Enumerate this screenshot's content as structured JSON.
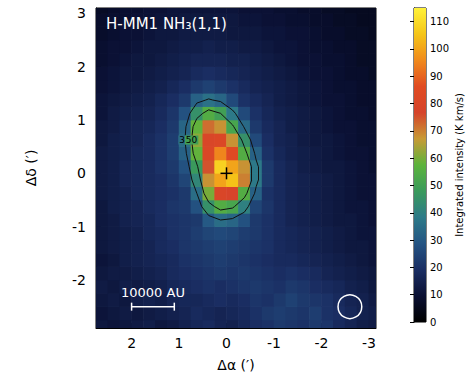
{
  "chart_data": {
    "type": "heatmap",
    "title": "H-MM1 NH₃(1,1)",
    "x_label": "Δα (′)",
    "y_label": "Δδ (′)",
    "xlim": [
      2.75,
      -3.15
    ],
    "ylim": [
      -2.9,
      3.1
    ],
    "xticks": [
      2,
      1,
      0,
      -1,
      -2,
      -3
    ],
    "yticks": [
      -2,
      -1,
      0,
      1,
      2,
      3
    ],
    "x": [
      2.625,
      2.375,
      2.125,
      1.875,
      1.625,
      1.375,
      1.125,
      0.875,
      0.625,
      0.375,
      0.125,
      -0.125,
      -0.375,
      -0.625,
      -0.875,
      -1.125,
      -1.375,
      -1.625,
      -1.875,
      -2.125,
      -2.375,
      -2.625,
      -2.875,
      -3.125
    ],
    "y": [
      -2.875,
      -2.625,
      -2.375,
      -2.125,
      -1.875,
      -1.625,
      -1.375,
      -1.125,
      -0.875,
      -0.625,
      -0.375,
      -0.125,
      0.125,
      0.375,
      0.625,
      0.875,
      1.125,
      1.375,
      1.625,
      1.875,
      2.125,
      2.375,
      2.625,
      2.875,
      3.125
    ],
    "cells": [
      [
        12,
        11,
        12,
        13,
        14,
        12,
        13,
        15,
        17,
        18,
        16,
        15,
        17,
        19,
        20,
        22,
        21,
        20,
        22,
        21,
        18,
        16,
        14,
        13
      ],
      [
        11,
        12,
        13,
        12,
        13,
        14,
        15,
        16,
        18,
        17,
        16,
        17,
        18,
        20,
        22,
        23,
        22,
        21,
        23,
        20,
        19,
        17,
        15,
        14
      ],
      [
        12,
        13,
        12,
        14,
        15,
        14,
        16,
        17,
        17,
        18,
        19,
        18,
        19,
        21,
        20,
        22,
        24,
        22,
        21,
        20,
        18,
        16,
        15,
        13
      ],
      [
        13,
        12,
        14,
        13,
        14,
        15,
        17,
        18,
        19,
        20,
        19,
        20,
        21,
        22,
        21,
        20,
        22,
        21,
        19,
        18,
        17,
        15,
        14,
        12
      ],
      [
        12,
        13,
        13,
        14,
        15,
        16,
        18,
        19,
        20,
        21,
        22,
        21,
        22,
        21,
        20,
        19,
        20,
        19,
        18,
        16,
        15,
        14,
        13,
        12
      ],
      [
        11,
        12,
        14,
        15,
        16,
        17,
        18,
        20,
        21,
        22,
        23,
        22,
        21,
        20,
        19,
        18,
        18,
        17,
        16,
        15,
        14,
        13,
        12,
        11
      ],
      [
        12,
        13,
        14,
        15,
        16,
        18,
        19,
        21,
        22,
        23,
        24,
        23,
        22,
        21,
        20,
        18,
        17,
        16,
        15,
        14,
        13,
        12,
        12,
        11
      ],
      [
        12,
        13,
        14,
        15,
        17,
        18,
        20,
        21,
        23,
        25,
        26,
        25,
        23,
        22,
        20,
        18,
        17,
        16,
        15,
        14,
        13,
        12,
        11,
        11
      ],
      [
        12,
        13,
        15,
        16,
        17,
        19,
        20,
        21,
        22,
        30,
        35,
        33,
        28,
        22,
        20,
        18,
        16,
        15,
        14,
        13,
        12,
        12,
        11,
        10
      ],
      [
        12,
        14,
        15,
        16,
        18,
        19,
        21,
        22,
        28,
        45,
        55,
        52,
        40,
        25,
        21,
        18,
        16,
        15,
        14,
        13,
        12,
        11,
        11,
        10
      ],
      [
        13,
        14,
        15,
        17,
        18,
        19,
        20,
        22,
        35,
        60,
        80,
        78,
        55,
        32,
        20,
        18,
        16,
        15,
        14,
        13,
        12,
        11,
        10,
        10
      ],
      [
        13,
        14,
        16,
        17,
        18,
        19,
        21,
        25,
        42,
        68,
        100,
        105,
        70,
        38,
        22,
        18,
        16,
        15,
        14,
        13,
        12,
        11,
        10,
        10
      ],
      [
        13,
        14,
        16,
        17,
        18,
        20,
        22,
        28,
        48,
        75,
        108,
        100,
        68,
        38,
        22,
        18,
        16,
        14,
        13,
        12,
        12,
        11,
        10,
        9
      ],
      [
        13,
        14,
        15,
        17,
        18,
        20,
        23,
        32,
        58,
        82,
        95,
        85,
        55,
        32,
        20,
        17,
        15,
        14,
        13,
        12,
        11,
        10,
        10,
        9
      ],
      [
        12,
        14,
        15,
        16,
        18,
        20,
        23,
        35,
        62,
        80,
        82,
        68,
        45,
        26,
        19,
        16,
        15,
        13,
        12,
        12,
        11,
        10,
        9,
        9
      ],
      [
        12,
        13,
        15,
        16,
        17,
        19,
        22,
        33,
        58,
        72,
        68,
        52,
        34,
        22,
        18,
        16,
        14,
        13,
        12,
        11,
        10,
        10,
        9,
        9
      ],
      [
        11,
        13,
        14,
        15,
        16,
        18,
        21,
        28,
        45,
        55,
        50,
        38,
        26,
        20,
        17,
        15,
        14,
        13,
        12,
        11,
        10,
        9,
        9,
        8
      ],
      [
        11,
        12,
        13,
        14,
        15,
        17,
        19,
        22,
        32,
        36,
        33,
        26,
        20,
        18,
        16,
        14,
        13,
        12,
        11,
        10,
        10,
        9,
        8,
        8
      ],
      [
        10,
        11,
        12,
        13,
        14,
        15,
        17,
        19,
        22,
        24,
        22,
        20,
        18,
        16,
        15,
        14,
        13,
        12,
        11,
        10,
        9,
        9,
        8,
        8
      ],
      [
        10,
        11,
        12,
        12,
        13,
        14,
        15,
        16,
        18,
        19,
        18,
        17,
        16,
        15,
        14,
        13,
        12,
        11,
        10,
        10,
        9,
        8,
        8,
        7
      ],
      [
        9,
        10,
        11,
        12,
        12,
        13,
        14,
        15,
        16,
        16,
        16,
        15,
        15,
        14,
        13,
        12,
        11,
        10,
        10,
        9,
        9,
        8,
        7,
        7
      ],
      [
        9,
        10,
        10,
        11,
        12,
        12,
        13,
        14,
        14,
        15,
        14,
        14,
        13,
        13,
        12,
        11,
        11,
        10,
        9,
        9,
        8,
        8,
        7,
        7
      ],
      [
        8,
        9,
        10,
        10,
        11,
        12,
        12,
        13,
        13,
        13,
        13,
        12,
        12,
        12,
        11,
        11,
        10,
        10,
        9,
        8,
        8,
        7,
        7,
        6
      ],
      [
        8,
        9,
        9,
        10,
        10,
        11,
        11,
        12,
        12,
        12,
        12,
        12,
        11,
        11,
        10,
        10,
        9,
        9,
        8,
        8,
        7,
        7,
        6,
        6
      ],
      [
        7,
        8,
        9,
        9,
        10,
        10,
        11,
        11,
        11,
        11,
        11,
        11,
        10,
        10,
        10,
        9,
        9,
        8,
        8,
        7,
        7,
        6,
        6,
        6
      ]
    ],
    "contours": {
      "levels": [
        35,
        50
      ]
    },
    "colorbar": {
      "label": "Integrated intensity (K km/s)",
      "range": [
        0,
        115
      ],
      "ticks": [
        0,
        10,
        20,
        30,
        40,
        50,
        60,
        70,
        80,
        90,
        100,
        110
      ],
      "colors": [
        "#000000",
        "#0a1033",
        "#1a2e63",
        "#245483",
        "#2d7a88",
        "#3a9a5c",
        "#5cb33c",
        "#c79a35",
        "#d5432b",
        "#e04b22",
        "#f08a1c",
        "#f5c518",
        "#fff23a"
      ]
    },
    "scale_bar": {
      "label": "10000 AU",
      "x": [
        2.0,
        1.1
      ],
      "y": -2.5
    },
    "beam": {
      "x": -2.6,
      "y": -2.5,
      "diameter": 0.5
    },
    "reference_position": [
      0,
      0
    ]
  }
}
